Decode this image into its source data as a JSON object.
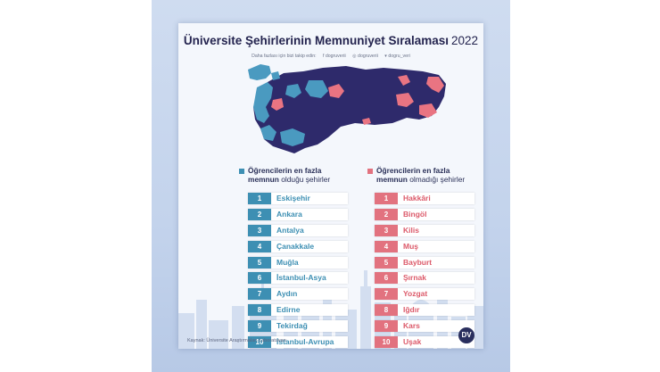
{
  "title": "Üniversite Şehirlerinin Memnuniyet Sıralaması",
  "year": "2022",
  "social": {
    "prompt": "Daha fazlası için bizi takip edin:",
    "facebook": "f dogruverii",
    "instagram": "◎ dogruverii",
    "twitter": "▾ dogru_veri"
  },
  "legend_satisfied": {
    "line1": "Öğrencilerin en fazla",
    "bold": "memnun",
    "rest": " olduğu şehirler",
    "color": "#3d8fb3"
  },
  "legend_unsatisfied": {
    "line1": "Öğrencilerin en fazla",
    "bold": "memnun",
    "rest": " olmadığı şehirler",
    "color": "#e2727f"
  },
  "most_satisfied": [
    {
      "rank": "1",
      "city": "Eskişehir"
    },
    {
      "rank": "2",
      "city": "Ankara"
    },
    {
      "rank": "3",
      "city": "Antalya"
    },
    {
      "rank": "4",
      "city": "Çanakkale"
    },
    {
      "rank": "5",
      "city": "Muğla"
    },
    {
      "rank": "6",
      "city": "İstanbul-Asya"
    },
    {
      "rank": "7",
      "city": "Aydın"
    },
    {
      "rank": "8",
      "city": "Edirne"
    },
    {
      "rank": "9",
      "city": "Tekirdağ"
    },
    {
      "rank": "10",
      "city": "İstanbul-Avrupa"
    }
  ],
  "least_satisfied": [
    {
      "rank": "1",
      "city": "Hakkâri"
    },
    {
      "rank": "2",
      "city": "Bingöl"
    },
    {
      "rank": "3",
      "city": "Kilis"
    },
    {
      "rank": "4",
      "city": "Muş"
    },
    {
      "rank": "5",
      "city": "Bayburt"
    },
    {
      "rank": "6",
      "city": "Şırnak"
    },
    {
      "rank": "7",
      "city": "Yozgat"
    },
    {
      "rank": "8",
      "city": "Iğdır"
    },
    {
      "rank": "9",
      "city": "Kars"
    },
    {
      "rank": "10",
      "city": "Uşak"
    }
  ],
  "source": "Kaynak: Üniversite Araştırmaları Laboratuvarı",
  "logo": "DV",
  "colors": {
    "map_base": "#2e2a6b",
    "map_satisfied": "#4a9ac0",
    "map_unsatisfied": "#e97482",
    "title": "#24244f"
  },
  "map_icon": "turkey-map"
}
